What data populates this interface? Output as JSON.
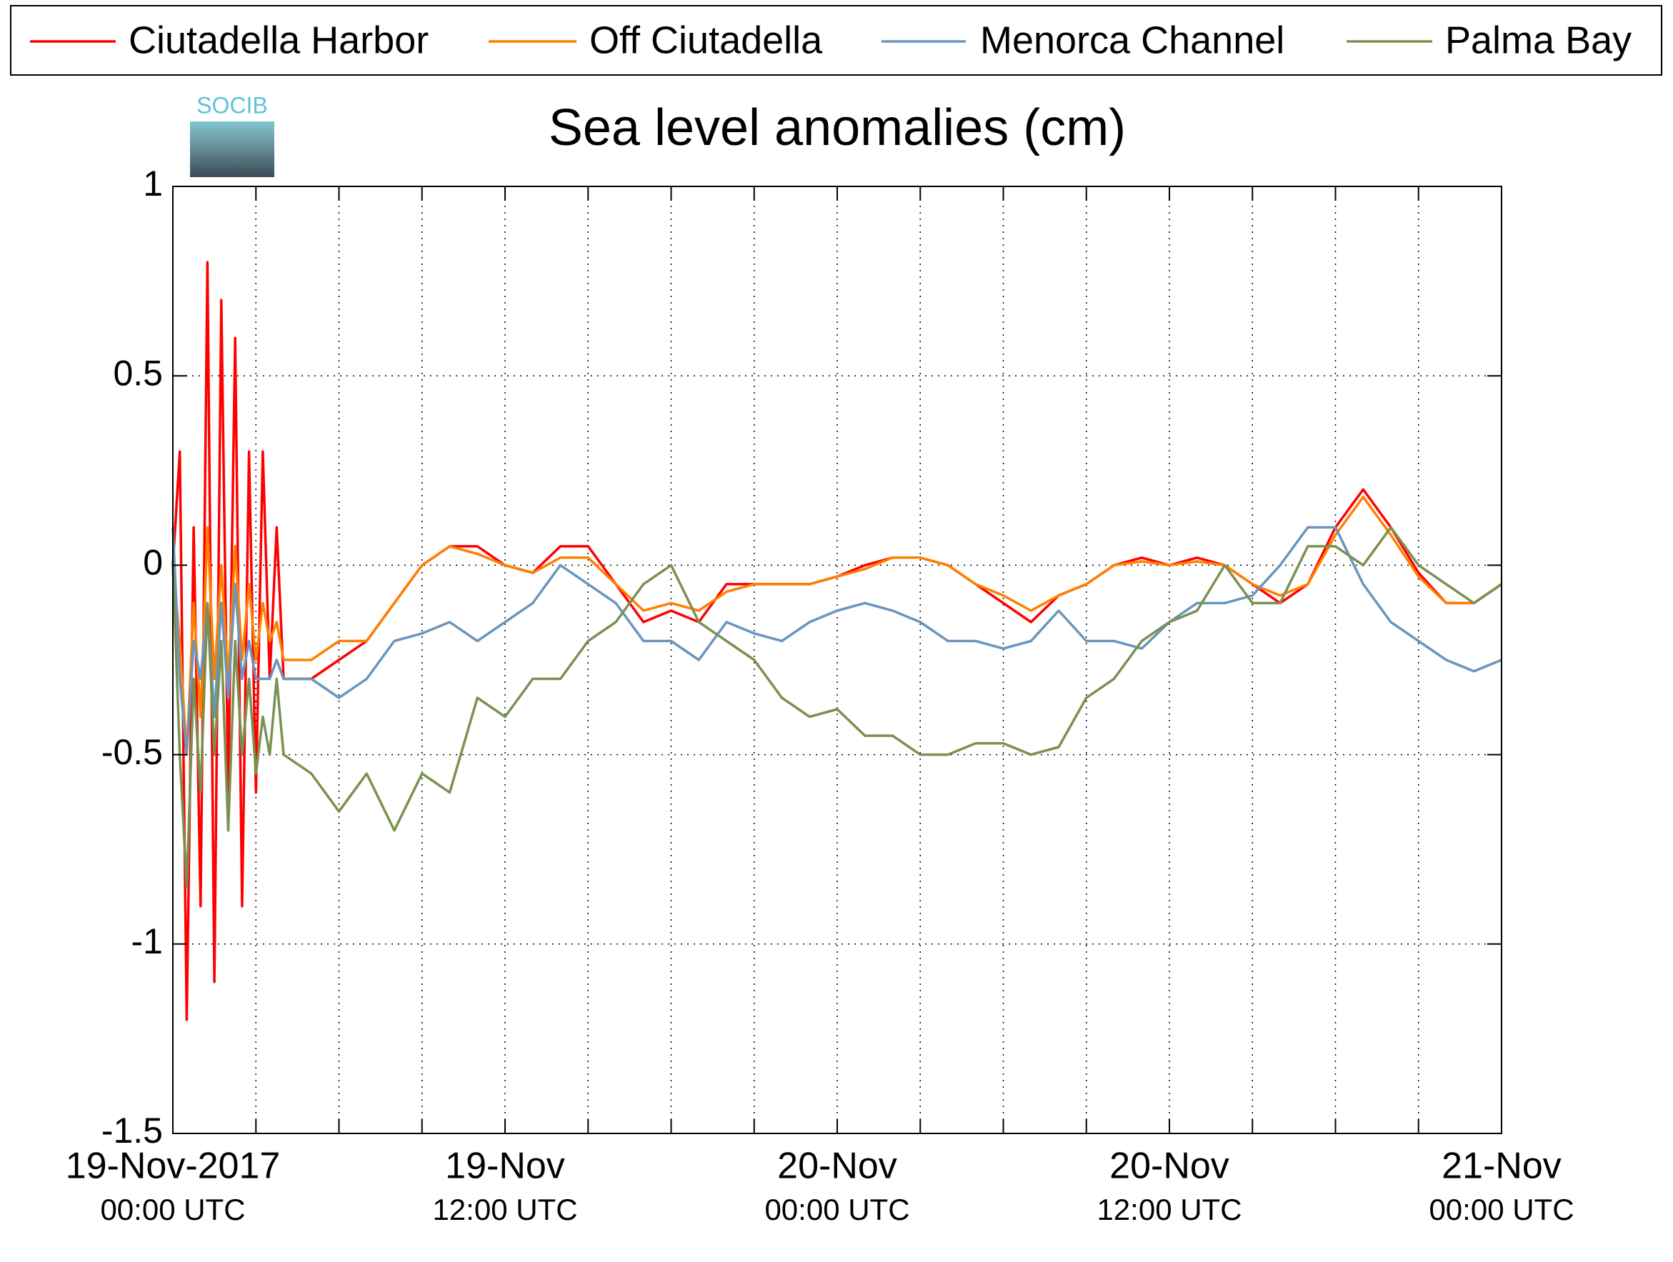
{
  "chart_data": {
    "type": "line",
    "title": "Sea level anomalies (cm)",
    "logo_text": "SOCIB",
    "legend": "top",
    "grid": true,
    "xlim": [
      0,
      48
    ],
    "xticks": [
      {
        "value": 0,
        "label": "19-Nov-2017",
        "sublabel": "00:00 UTC"
      },
      {
        "value": 12,
        "label": "19-Nov",
        "sublabel": "12:00 UTC"
      },
      {
        "value": 24,
        "label": "20-Nov",
        "sublabel": "00:00 UTC"
      },
      {
        "value": 36,
        "label": "20-Nov",
        "sublabel": "12:00 UTC"
      },
      {
        "value": 48,
        "label": "21-Nov",
        "sublabel": "00:00 UTC"
      }
    ],
    "xminor_ticks": [
      3,
      6,
      9,
      15,
      18,
      21,
      27,
      30,
      33,
      39,
      42,
      45
    ],
    "ylim": [
      -1.5,
      1
    ],
    "yticks": [
      -1.5,
      -1,
      -0.5,
      0,
      0.5,
      1
    ],
    "x": [
      0,
      0.25,
      0.5,
      0.75,
      1,
      1.25,
      1.5,
      1.75,
      2,
      2.25,
      2.5,
      2.75,
      3,
      3.25,
      3.5,
      3.75,
      4,
      5,
      6,
      7,
      8,
      9,
      10,
      11,
      12,
      13,
      14,
      15,
      16,
      17,
      18,
      19,
      20,
      21,
      22,
      23,
      24,
      25,
      26,
      27,
      28,
      29,
      30,
      31,
      32,
      33,
      34,
      35,
      36,
      37,
      38,
      39,
      40,
      41,
      42,
      43,
      44,
      45,
      46,
      47,
      48
    ],
    "series": [
      {
        "name": "Ciutadella Harbor",
        "color": "#ff0000",
        "values": [
          0.0,
          0.3,
          -1.2,
          0.1,
          -0.9,
          0.8,
          -1.1,
          0.7,
          -0.6,
          0.6,
          -0.9,
          0.3,
          -0.6,
          0.3,
          -0.3,
          0.1,
          -0.3,
          -0.3,
          -0.25,
          -0.2,
          -0.1,
          0.0,
          0.05,
          0.05,
          0.0,
          -0.02,
          0.05,
          0.05,
          -0.05,
          -0.15,
          -0.12,
          -0.15,
          -0.05,
          -0.05,
          -0.05,
          -0.05,
          -0.03,
          0.0,
          0.02,
          0.02,
          0.0,
          -0.05,
          -0.1,
          -0.15,
          -0.08,
          -0.05,
          0.0,
          0.02,
          0.0,
          0.02,
          0.0,
          -0.05,
          -0.1,
          -0.05,
          0.1,
          0.2,
          0.1,
          -0.02,
          -0.1,
          -0.1,
          -0.05
        ]
      },
      {
        "name": "Off Ciutadella",
        "color": "#ff8000",
        "values": [
          0.0,
          -0.2,
          -0.5,
          -0.1,
          -0.4,
          0.1,
          -0.3,
          0.0,
          -0.3,
          0.05,
          -0.25,
          -0.05,
          -0.25,
          -0.1,
          -0.2,
          -0.15,
          -0.25,
          -0.25,
          -0.2,
          -0.2,
          -0.1,
          0.0,
          0.05,
          0.03,
          0.0,
          -0.02,
          0.02,
          0.02,
          -0.05,
          -0.12,
          -0.1,
          -0.12,
          -0.07,
          -0.05,
          -0.05,
          -0.05,
          -0.03,
          -0.01,
          0.02,
          0.02,
          0.0,
          -0.05,
          -0.08,
          -0.12,
          -0.08,
          -0.05,
          0.0,
          0.01,
          0.0,
          0.01,
          0.0,
          -0.05,
          -0.08,
          -0.05,
          0.08,
          0.18,
          0.08,
          -0.03,
          -0.1,
          -0.1,
          -0.05
        ]
      },
      {
        "name": "Menorca Channel",
        "color": "#6a95bd",
        "values": [
          0.1,
          -0.3,
          -0.5,
          -0.2,
          -0.3,
          -0.1,
          -0.4,
          -0.1,
          -0.35,
          -0.05,
          -0.3,
          -0.2,
          -0.3,
          -0.3,
          -0.3,
          -0.25,
          -0.3,
          -0.3,
          -0.35,
          -0.3,
          -0.2,
          -0.18,
          -0.15,
          -0.2,
          -0.15,
          -0.1,
          0.0,
          -0.05,
          -0.1,
          -0.2,
          -0.2,
          -0.25,
          -0.15,
          -0.18,
          -0.2,
          -0.15,
          -0.12,
          -0.1,
          -0.12,
          -0.15,
          -0.2,
          -0.2,
          -0.22,
          -0.2,
          -0.12,
          -0.2,
          -0.2,
          -0.22,
          -0.15,
          -0.1,
          -0.1,
          -0.08,
          0.0,
          0.1,
          0.1,
          -0.05,
          -0.15,
          -0.2,
          -0.25,
          -0.28,
          -0.25
        ]
      },
      {
        "name": "Palma Bay",
        "color": "#7a9150",
        "values": [
          0.0,
          -0.5,
          -0.85,
          -0.3,
          -0.6,
          -0.1,
          -0.5,
          -0.2,
          -0.7,
          -0.2,
          -0.5,
          -0.3,
          -0.55,
          -0.4,
          -0.5,
          -0.3,
          -0.5,
          -0.55,
          -0.65,
          -0.55,
          -0.7,
          -0.55,
          -0.6,
          -0.35,
          -0.4,
          -0.3,
          -0.3,
          -0.2,
          -0.15,
          -0.05,
          0.0,
          -0.15,
          -0.2,
          -0.25,
          -0.35,
          -0.4,
          -0.38,
          -0.45,
          -0.45,
          -0.5,
          -0.5,
          -0.47,
          -0.47,
          -0.5,
          -0.48,
          -0.35,
          -0.3,
          -0.2,
          -0.15,
          -0.12,
          0.0,
          -0.1,
          -0.1,
          0.05,
          0.05,
          0.0,
          0.1,
          0.0,
          -0.05,
          -0.1,
          -0.05
        ]
      }
    ]
  }
}
